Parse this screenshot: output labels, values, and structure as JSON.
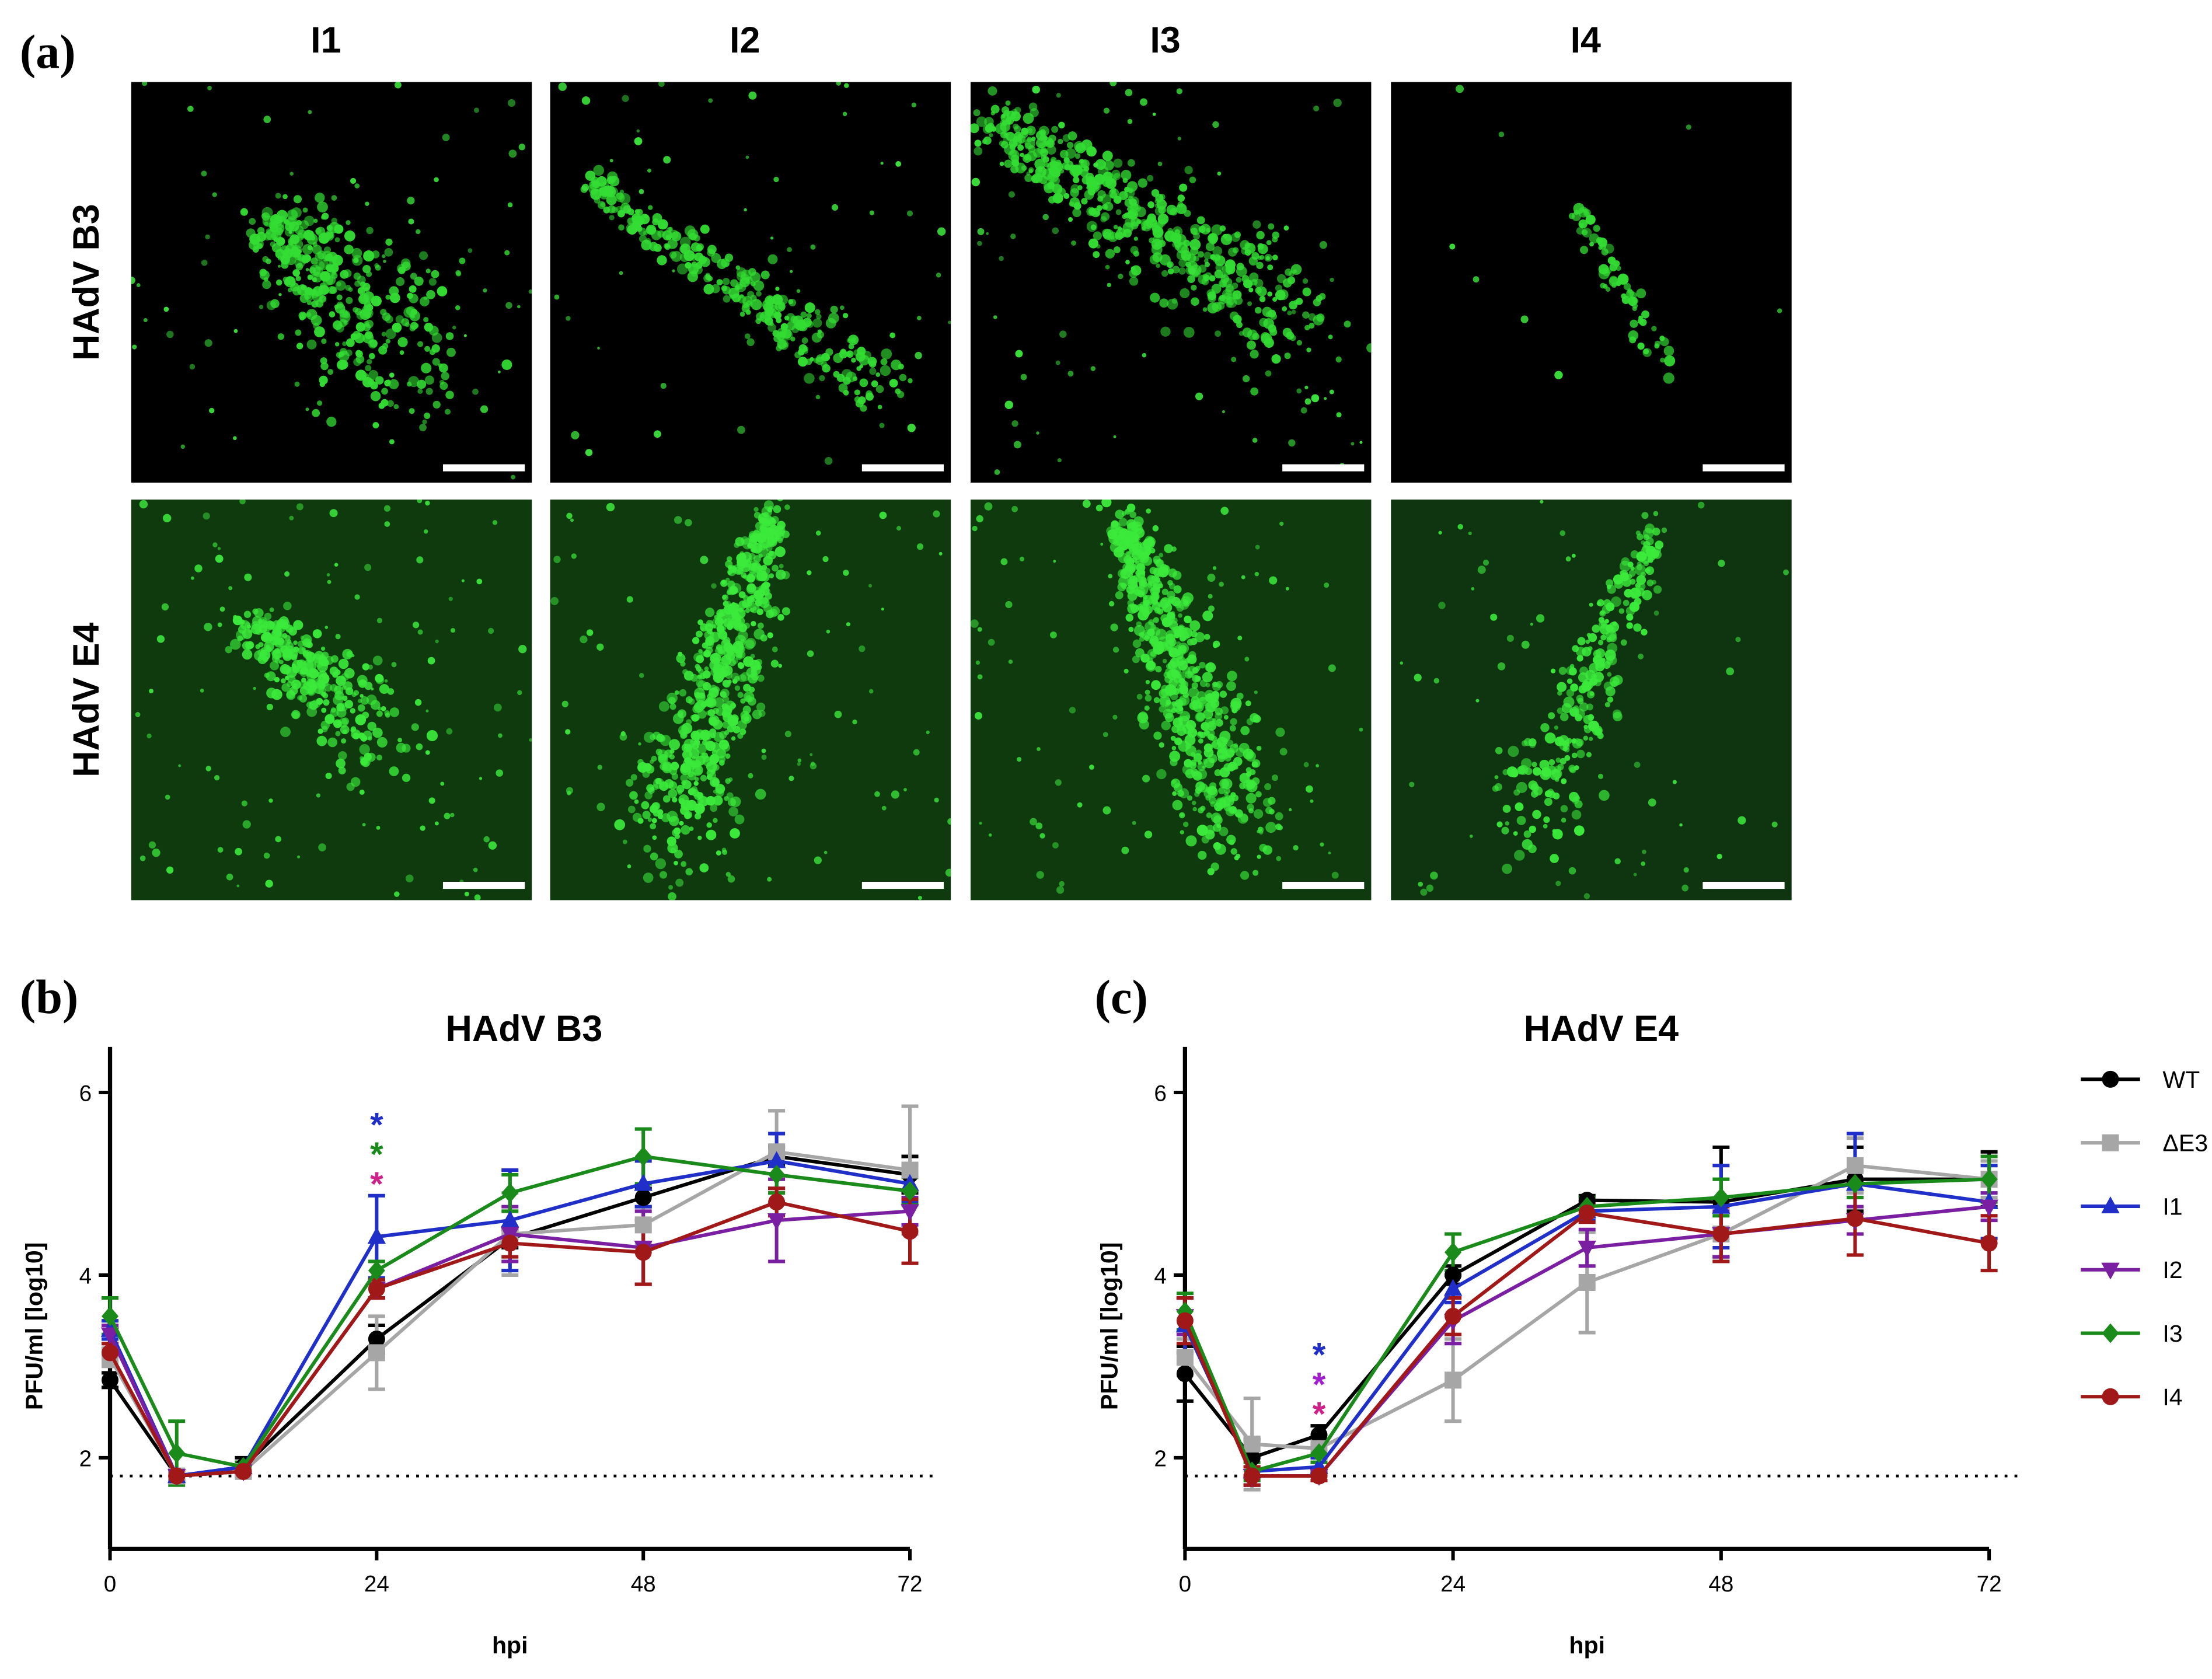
{
  "panel_a": {
    "label": "(a)",
    "columns": [
      "I1",
      "I2",
      "I3",
      "I4"
    ],
    "rows": [
      "HAdV B3",
      "HAdV E4"
    ]
  },
  "chart_data": [
    {
      "type": "line",
      "panel": "(b)",
      "title": "HAdV B3",
      "xlabel": "hpi",
      "ylabel": "PFU/ml [log10]",
      "x": [
        0,
        6,
        12,
        24,
        36,
        48,
        60,
        72
      ],
      "xlim": [
        0,
        72
      ],
      "xticks": [
        0,
        24,
        48,
        72
      ],
      "ylim": [
        1,
        6.5
      ],
      "yticks": [
        2,
        4,
        6
      ],
      "limit_line": 1.8,
      "legend": "none",
      "series": [
        {
          "name": "WT",
          "color": "#000000",
          "marker": "circle",
          "values": [
            2.85,
            1.8,
            1.9,
            3.3,
            4.4,
            4.85,
            5.3,
            5.1
          ],
          "errors": [
            0.08,
            0.05,
            0.1,
            0.15,
            0.1,
            0.1,
            0.1,
            0.2
          ]
        },
        {
          "name": "ΔE3",
          "color": "#a6a6a6",
          "marker": "square",
          "values": [
            3.1,
            1.8,
            1.85,
            3.15,
            4.45,
            4.55,
            5.35,
            5.15
          ],
          "errors": [
            0.1,
            0.05,
            0.05,
            0.4,
            0.45,
            0.2,
            0.45,
            0.7
          ]
        },
        {
          "name": "I1",
          "color": "#1f2fc8",
          "marker": "triangle-up",
          "values": [
            3.4,
            1.8,
            1.9,
            4.42,
            4.6,
            5.0,
            5.25,
            5.0
          ],
          "errors": [
            0.1,
            0.05,
            0.05,
            0.45,
            0.55,
            0.25,
            0.3,
            0.2
          ]
        },
        {
          "name": "I2",
          "color": "#7b1fa2",
          "marker": "triangle-down",
          "values": [
            3.35,
            1.8,
            1.85,
            3.85,
            4.45,
            4.3,
            4.6,
            4.7
          ],
          "errors": [
            0.1,
            0.05,
            0.05,
            0.1,
            0.3,
            0.4,
            0.45,
            0.15
          ]
        },
        {
          "name": "I3",
          "color": "#1a8a1a",
          "marker": "diamond",
          "values": [
            3.55,
            2.05,
            1.9,
            4.05,
            4.9,
            5.3,
            5.1,
            4.92
          ],
          "errors": [
            0.2,
            0.35,
            0.05,
            0.1,
            0.2,
            0.3,
            0.2,
            0.15
          ]
        },
        {
          "name": "I4",
          "color": "#a01818",
          "marker": "circle",
          "values": [
            3.15,
            1.8,
            1.85,
            3.85,
            4.35,
            4.25,
            4.8,
            4.48
          ],
          "errors": [
            0.1,
            0.05,
            0.05,
            0.1,
            0.15,
            0.35,
            0.15,
            0.35
          ]
        }
      ],
      "annotations": [
        {
          "text": "*",
          "color": "#1f2fc8",
          "x": 24
        },
        {
          "text": "*",
          "color": "#1a8a1a",
          "x": 24
        },
        {
          "text": "*",
          "color": "#d0208a",
          "x": 24
        }
      ]
    },
    {
      "type": "line",
      "panel": "(c)",
      "title": "HAdV E4",
      "xlabel": "hpi",
      "ylabel": "PFU/ml [log10]",
      "x": [
        0,
        6,
        12,
        24,
        36,
        48,
        60,
        72
      ],
      "xlim": [
        0,
        72
      ],
      "xticks": [
        0,
        24,
        48,
        72
      ],
      "ylim": [
        1,
        6.5
      ],
      "yticks": [
        2,
        4,
        6
      ],
      "limit_line": 1.8,
      "legend": "outside-right",
      "series": [
        {
          "name": "WT",
          "color": "#000000",
          "marker": "circle",
          "values": [
            2.92,
            2.0,
            2.25,
            4.0,
            4.82,
            4.8,
            5.05,
            5.05
          ],
          "errors": [
            0.3,
            0.2,
            0.1,
            0.1,
            0.05,
            0.6,
            0.35,
            0.3
          ]
        },
        {
          "name": "ΔE3",
          "color": "#a6a6a6",
          "marker": "square",
          "values": [
            3.1,
            2.15,
            2.1,
            2.85,
            3.92,
            4.45,
            5.2,
            5.05
          ],
          "errors": [
            0.2,
            0.5,
            0.1,
            0.45,
            0.55,
            0.3,
            0.3,
            0.2
          ]
        },
        {
          "name": "I1",
          "color": "#1f2fc8",
          "marker": "triangle-up",
          "values": [
            3.45,
            1.85,
            1.9,
            3.85,
            4.7,
            4.75,
            5.0,
            4.8
          ],
          "errors": [
            0.3,
            0.15,
            0.1,
            0.15,
            0.1,
            0.45,
            0.55,
            0.4
          ]
        },
        {
          "name": "I2",
          "color": "#7b1fa2",
          "marker": "triangle-down",
          "values": [
            3.55,
            1.8,
            1.8,
            3.5,
            4.3,
            4.45,
            4.6,
            4.75
          ],
          "errors": [
            0.2,
            0.1,
            0.05,
            0.25,
            0.2,
            0.25,
            0.15,
            0.15
          ]
        },
        {
          "name": "I3",
          "color": "#1a8a1a",
          "marker": "diamond",
          "values": [
            3.6,
            1.85,
            2.05,
            4.25,
            4.75,
            4.85,
            5.0,
            5.05
          ],
          "errors": [
            0.2,
            0.1,
            0.1,
            0.2,
            0.1,
            0.2,
            0.15,
            0.25
          ]
        },
        {
          "name": "I4",
          "color": "#a01818",
          "marker": "circle",
          "values": [
            3.5,
            1.8,
            1.8,
            3.55,
            4.68,
            4.45,
            4.62,
            4.35
          ],
          "errors": [
            0.25,
            0.1,
            0.05,
            0.2,
            0.1,
            0.3,
            0.4,
            0.3
          ]
        }
      ],
      "annotations": [
        {
          "text": "*",
          "color": "#1f2fc8",
          "x": 12
        },
        {
          "text": "*",
          "color": "#a020d0",
          "x": 12
        },
        {
          "text": "*",
          "color": "#d0208a",
          "x": 12
        }
      ]
    }
  ]
}
